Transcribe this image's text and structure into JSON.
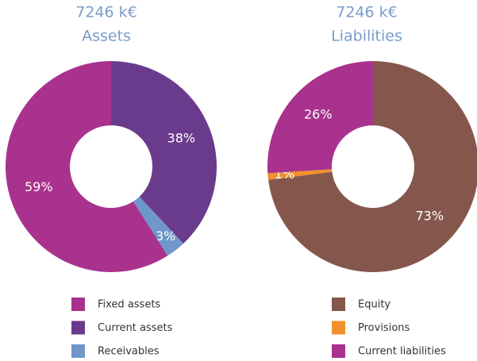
{
  "chart_data": [
    {
      "type": "pie",
      "title": "7246 k€",
      "subtitle": "Assets",
      "categories": [
        "Fixed assets",
        "Current assets",
        "Receivables"
      ],
      "values": [
        59,
        38,
        3
      ],
      "value_labels": [
        "59%",
        "38%",
        "3%"
      ],
      "colors": [
        "#a8328e",
        "#6a3a8c",
        "#6f97c9"
      ]
    },
    {
      "type": "pie",
      "title": "7246 k€",
      "subtitle": "Liabilities",
      "categories": [
        "Equity",
        "Provisions",
        "Current liabilities"
      ],
      "values": [
        73,
        1,
        26
      ],
      "value_labels": [
        "73%",
        "1%",
        "26%"
      ],
      "colors": [
        "#85574c",
        "#f0912d",
        "#a8328e"
      ]
    }
  ]
}
